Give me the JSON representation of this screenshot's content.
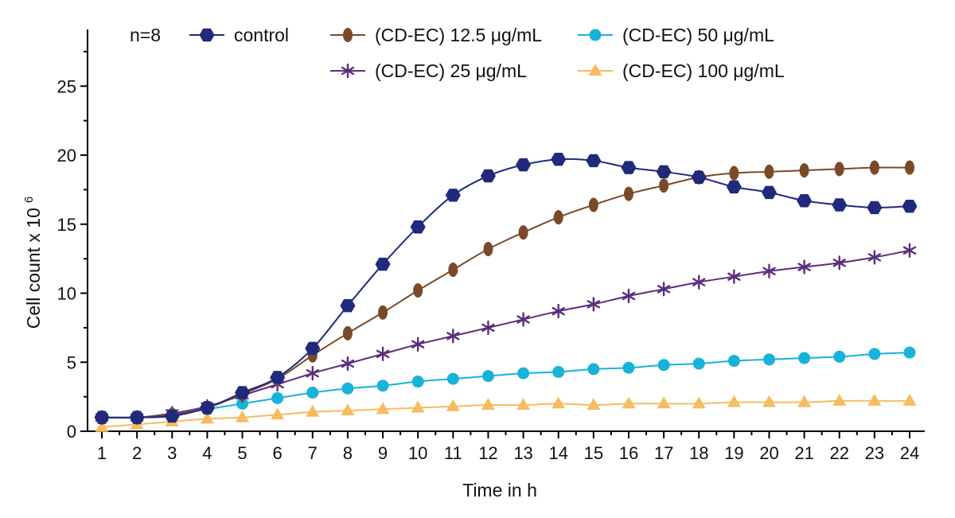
{
  "chart_data": {
    "type": "line",
    "xlabel": "Time in h",
    "ylabel": "Cell count x 10",
    "ylabel_superscript": "6",
    "annotation": "n=8",
    "xlim": [
      1,
      24
    ],
    "ylim": [
      0,
      28
    ],
    "x": [
      1,
      2,
      3,
      4,
      5,
      6,
      7,
      8,
      9,
      10,
      11,
      12,
      13,
      14,
      15,
      16,
      17,
      18,
      19,
      20,
      21,
      22,
      23,
      24
    ],
    "x_ticks": [
      "1",
      "2",
      "3",
      "4",
      "5",
      "6",
      "7",
      "8",
      "9",
      "10",
      "11",
      "12",
      "13",
      "14",
      "15",
      "16",
      "17",
      "18",
      "19",
      "20",
      "21",
      "22",
      "23",
      "24"
    ],
    "y_ticks": [
      0,
      5,
      10,
      15,
      20,
      25
    ],
    "grid": false,
    "legend_position": "top",
    "series": [
      {
        "name": "control",
        "color": "#1f2a7c",
        "marker": "hexagon",
        "values": [
          1.0,
          1.0,
          1.1,
          1.7,
          2.8,
          3.9,
          6.0,
          9.1,
          12.1,
          14.8,
          17.1,
          18.5,
          19.3,
          19.7,
          19.6,
          19.1,
          18.8,
          18.4,
          17.7,
          17.3,
          16.7,
          16.4,
          16.2,
          16.3
        ]
      },
      {
        "name": "(CD-EC) 12.5 μg/mL",
        "color": "#7a4a28",
        "marker": "ellipse",
        "values": [
          1.0,
          1.0,
          1.2,
          1.7,
          2.7,
          3.8,
          5.5,
          7.1,
          8.6,
          10.2,
          11.7,
          13.2,
          14.4,
          15.5,
          16.4,
          17.2,
          17.8,
          18.4,
          18.7,
          18.8,
          18.9,
          19.0,
          19.1,
          19.1
        ]
      },
      {
        "name": "(CD-EC) 25 μg/mL",
        "color": "#5b2d7e",
        "marker": "asterisk",
        "values": [
          1.0,
          1.0,
          1.3,
          1.8,
          2.6,
          3.4,
          4.2,
          4.9,
          5.6,
          6.3,
          6.9,
          7.5,
          8.1,
          8.7,
          9.2,
          9.8,
          10.3,
          10.8,
          11.2,
          11.6,
          11.9,
          12.2,
          12.6,
          13.1
        ]
      },
      {
        "name": "(CD-EC) 50 μg/mL",
        "color": "#17b3d8",
        "marker": "circle",
        "values": [
          1.0,
          1.0,
          1.2,
          1.6,
          2.0,
          2.4,
          2.8,
          3.1,
          3.3,
          3.6,
          3.8,
          4.0,
          4.2,
          4.3,
          4.5,
          4.6,
          4.8,
          4.9,
          5.1,
          5.2,
          5.3,
          5.4,
          5.6,
          5.7
        ]
      },
      {
        "name": "(CD-EC) 100 μg/mL",
        "color": "#f5bd5f",
        "marker": "triangle",
        "values": [
          0.3,
          0.5,
          0.7,
          0.9,
          1.0,
          1.2,
          1.4,
          1.5,
          1.6,
          1.7,
          1.8,
          1.9,
          1.9,
          2.0,
          1.9,
          2.0,
          2.0,
          2.0,
          2.1,
          2.1,
          2.1,
          2.2,
          2.2,
          2.2
        ]
      }
    ]
  }
}
